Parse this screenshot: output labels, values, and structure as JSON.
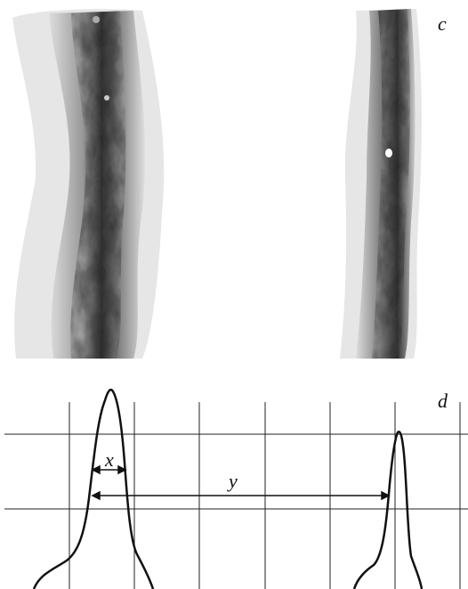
{
  "panels": [
    {
      "label": "c"
    },
    {
      "label": "d",
      "annotations": [
        "x",
        "y"
      ]
    }
  ]
}
